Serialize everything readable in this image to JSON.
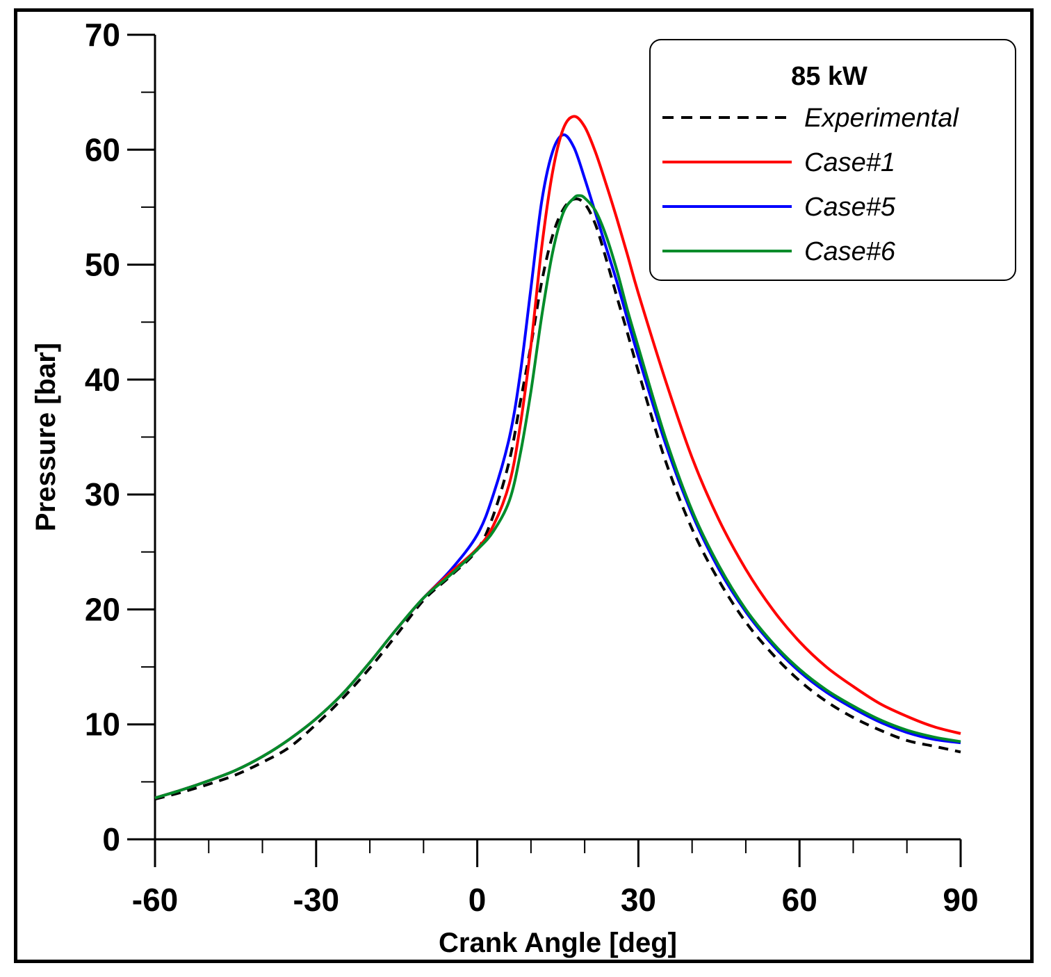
{
  "chart_data": {
    "type": "line",
    "title": "",
    "xlabel": "Crank Angle [deg]",
    "ylabel": "Pressure [bar]",
    "xlim": [
      -60,
      90
    ],
    "ylim": [
      0,
      70
    ],
    "xticks": [
      -60,
      -30,
      0,
      30,
      60,
      90
    ],
    "xtick_labels": [
      "-60",
      "-30",
      "0",
      "30",
      "60",
      "90"
    ],
    "yticks": [
      0,
      10,
      20,
      30,
      40,
      50,
      60,
      70
    ],
    "ytick_labels": [
      "0",
      "10",
      "20",
      "30",
      "40",
      "50",
      "60",
      "70"
    ],
    "grid": false,
    "legend": {
      "title": "85 kW",
      "position": "top-right"
    },
    "series": [
      {
        "name": "Experimental",
        "color": "#000000",
        "dash": "dashed",
        "x": [
          -60,
          -55,
          -50,
          -45,
          -40,
          -35,
          -30,
          -25,
          -20,
          -15,
          -10,
          -5,
          0,
          3,
          6,
          8,
          10,
          12,
          14,
          16,
          18,
          20,
          22,
          24,
          26,
          28,
          30,
          35,
          40,
          45,
          50,
          55,
          60,
          65,
          70,
          75,
          80,
          85,
          90
        ],
        "y": [
          3.5,
          4.1,
          4.8,
          5.6,
          6.7,
          8.0,
          10.0,
          12.3,
          14.9,
          17.8,
          20.8,
          22.9,
          25.2,
          28.2,
          33.0,
          38.0,
          43.0,
          48.5,
          52.5,
          54.8,
          55.7,
          55.3,
          53.5,
          50.5,
          47.2,
          44.0,
          40.7,
          33.0,
          27.0,
          22.5,
          18.9,
          16.1,
          13.8,
          12.0,
          10.6,
          9.5,
          8.6,
          8.1,
          7.6
        ]
      },
      {
        "name": "Case#1",
        "color": "#ff0000",
        "dash": "solid",
        "x": [
          -60,
          -55,
          -50,
          -45,
          -40,
          -35,
          -30,
          -25,
          -20,
          -15,
          -10,
          -5,
          0,
          3,
          6,
          8,
          10,
          12,
          14,
          16,
          18,
          20,
          22,
          24,
          26,
          28,
          30,
          35,
          40,
          45,
          50,
          55,
          60,
          65,
          70,
          75,
          80,
          85,
          90
        ],
        "y": [
          3.6,
          4.3,
          5.1,
          6.0,
          7.2,
          8.7,
          10.5,
          12.7,
          15.4,
          18.3,
          21.0,
          23.2,
          25.3,
          27.3,
          31.0,
          36.0,
          43.0,
          51.5,
          58.0,
          61.8,
          62.9,
          62.0,
          59.8,
          57.0,
          54.0,
          50.8,
          47.5,
          40.0,
          33.2,
          27.8,
          23.5,
          20.0,
          17.2,
          15.0,
          13.3,
          11.8,
          10.7,
          9.8,
          9.2
        ]
      },
      {
        "name": "Case#5",
        "color": "#0000ff",
        "dash": "solid",
        "x": [
          -60,
          -55,
          -50,
          -45,
          -40,
          -35,
          -30,
          -25,
          -20,
          -15,
          -10,
          -5,
          0,
          3,
          6,
          8,
          10,
          12,
          14,
          16,
          18,
          20,
          22,
          24,
          26,
          28,
          30,
          35,
          40,
          45,
          50,
          55,
          60,
          65,
          70,
          75,
          80,
          85,
          90
        ],
        "y": [
          3.6,
          4.3,
          5.1,
          6.0,
          7.2,
          8.7,
          10.5,
          12.7,
          15.4,
          18.3,
          21.0,
          23.4,
          26.5,
          30.0,
          35.0,
          40.5,
          48.0,
          55.5,
          59.8,
          61.3,
          60.2,
          57.5,
          54.5,
          51.5,
          48.5,
          45.2,
          42.0,
          34.5,
          28.3,
          23.5,
          19.8,
          16.9,
          14.6,
          12.8,
          11.4,
          10.2,
          9.3,
          8.7,
          8.4
        ]
      },
      {
        "name": "Case#6",
        "color": "#008c2a",
        "dash": "solid",
        "x": [
          -60,
          -55,
          -50,
          -45,
          -40,
          -35,
          -30,
          -25,
          -20,
          -15,
          -10,
          -5,
          0,
          3,
          6,
          8,
          10,
          12,
          14,
          16,
          18,
          19,
          20,
          22,
          24,
          26,
          28,
          30,
          35,
          40,
          45,
          50,
          55,
          60,
          65,
          70,
          75,
          80,
          85,
          90
        ],
        "y": [
          3.6,
          4.3,
          5.1,
          6.0,
          7.2,
          8.7,
          10.5,
          12.7,
          15.4,
          18.3,
          21.0,
          23.0,
          25.2,
          26.8,
          29.5,
          33.5,
          39.0,
          45.5,
          51.0,
          54.5,
          55.8,
          56.0,
          55.8,
          54.7,
          52.5,
          49.5,
          46.0,
          42.8,
          35.0,
          28.6,
          23.8,
          20.0,
          17.1,
          14.8,
          13.0,
          11.6,
          10.4,
          9.5,
          8.9,
          8.5
        ]
      }
    ]
  }
}
